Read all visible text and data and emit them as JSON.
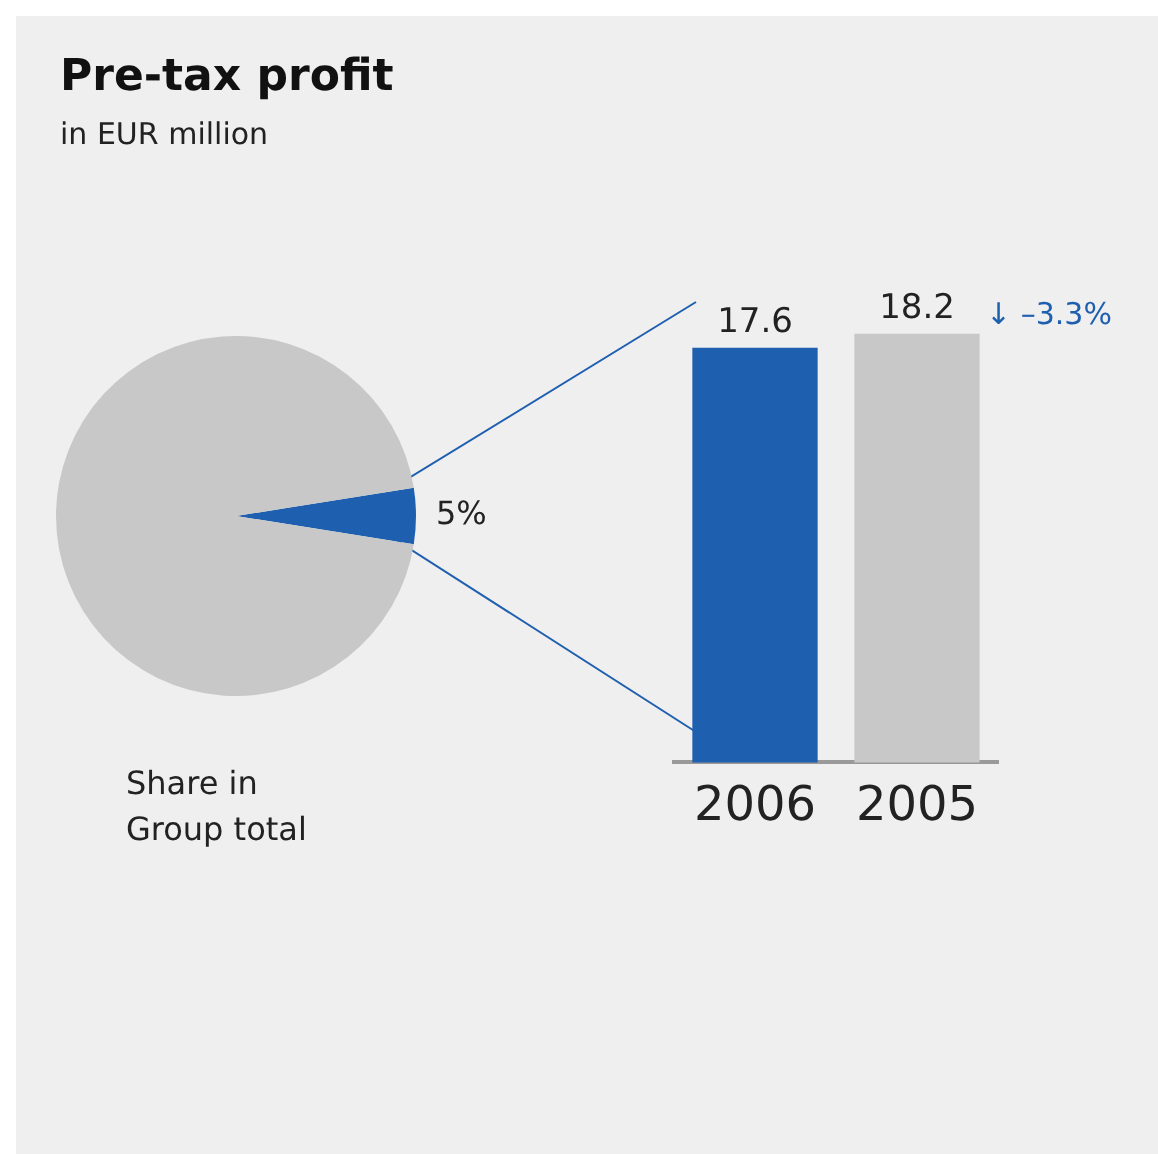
{
  "chart_data": [
    {
      "type": "pie",
      "title": "Pre-tax profit",
      "subtitle": "in EUR million",
      "xlabel": "Share in Group total",
      "categories": [
        null,
        null
      ],
      "values": [
        5,
        95
      ],
      "colors": [
        "#1f5fb0",
        "#c8c8c8"
      ],
      "value_labels": [
        "5%",
        null
      ]
    },
    {
      "type": "bar",
      "categories": [
        "2006",
        "2005"
      ],
      "values": [
        17.6,
        18.2
      ],
      "colors": [
        "#1f5fb0",
        "#c8c8c8"
      ],
      "data_labels": true,
      "annotations": [
        "↓ –3.3%"
      ]
    }
  ]
}
